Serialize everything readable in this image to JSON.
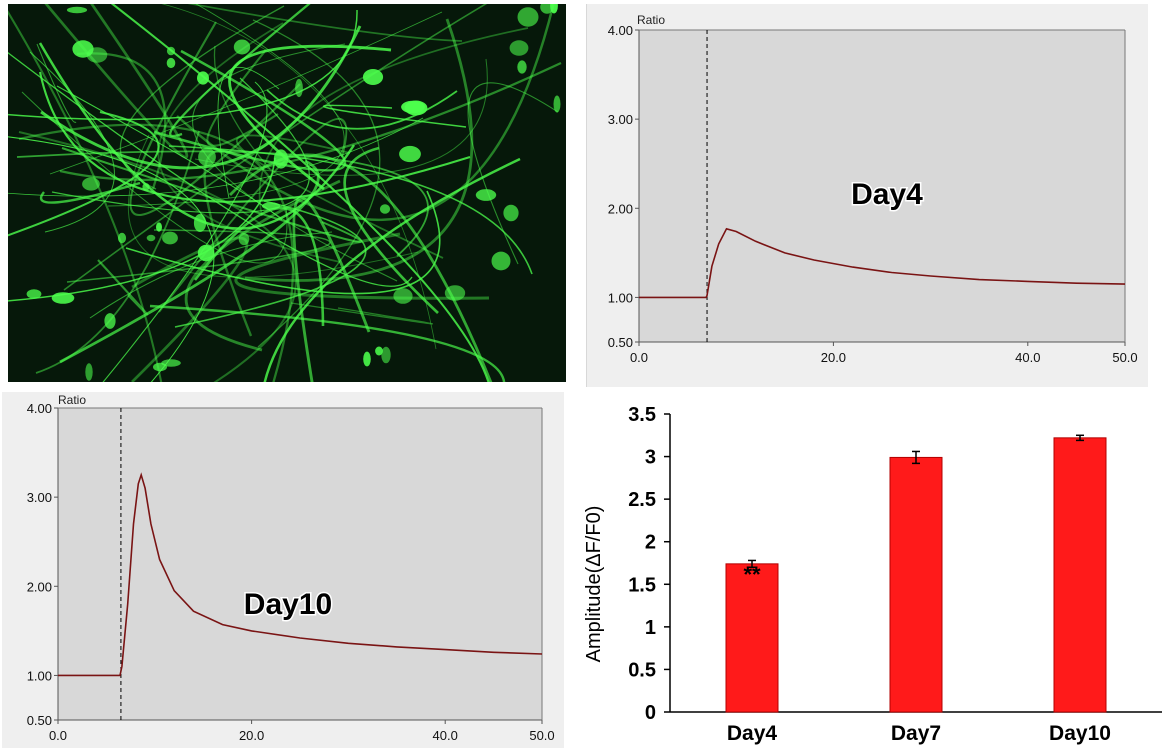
{
  "chart_data": [
    {
      "type": "line",
      "panel": "top-right",
      "ylabel": "Ratio",
      "annotation": "Day4",
      "xlim": [
        0,
        50
      ],
      "ylim": [
        0.5,
        4.0
      ],
      "x_ticks": [
        "0.0",
        "20.0",
        "40.0",
        "50.0"
      ],
      "x_tick_values": [
        0,
        20,
        40,
        50
      ],
      "y_ticks": [
        "0.50",
        "1.00",
        "2.00",
        "3.00",
        "4.00"
      ],
      "y_tick_values": [
        0.5,
        1.0,
        2.0,
        3.0,
        4.0
      ],
      "stimulus_x": 7,
      "series": [
        {
          "color": "#7a1414",
          "points": [
            [
              0,
              1.0
            ],
            [
              6.9,
              1.0
            ],
            [
              7.0,
              1.02
            ],
            [
              7.5,
              1.35
            ],
            [
              8.2,
              1.6
            ],
            [
              9.0,
              1.77
            ],
            [
              10,
              1.74
            ],
            [
              12,
              1.63
            ],
            [
              15,
              1.5
            ],
            [
              18,
              1.42
            ],
            [
              22,
              1.34
            ],
            [
              26,
              1.28
            ],
            [
              30,
              1.24
            ],
            [
              35,
              1.2
            ],
            [
              40,
              1.18
            ],
            [
              45,
              1.16
            ],
            [
              50,
              1.15
            ]
          ]
        }
      ],
      "grid": false,
      "legend": "none"
    },
    {
      "type": "line",
      "panel": "bottom-left",
      "ylabel": "Ratio",
      "annotation": "Day10",
      "xlim": [
        0,
        50
      ],
      "ylim": [
        0.5,
        4.0
      ],
      "x_ticks": [
        "0.0",
        "20.0",
        "40.0",
        "50.0"
      ],
      "x_tick_values": [
        0,
        20,
        40,
        50
      ],
      "y_ticks": [
        "0.50",
        "1.00",
        "2.00",
        "3.00",
        "4.00"
      ],
      "y_tick_values": [
        0.5,
        1.0,
        2.0,
        3.0,
        4.0
      ],
      "stimulus_x": 6.5,
      "series": [
        {
          "color": "#7a1414",
          "points": [
            [
              0,
              1.0
            ],
            [
              6.4,
              1.0
            ],
            [
              6.6,
              1.1
            ],
            [
              7.2,
              1.8
            ],
            [
              7.8,
              2.7
            ],
            [
              8.3,
              3.15
            ],
            [
              8.6,
              3.25
            ],
            [
              9.0,
              3.1
            ],
            [
              9.6,
              2.7
            ],
            [
              10.5,
              2.3
            ],
            [
              12,
              1.95
            ],
            [
              14,
              1.72
            ],
            [
              17,
              1.57
            ],
            [
              20,
              1.5
            ],
            [
              25,
              1.42
            ],
            [
              30,
              1.36
            ],
            [
              35,
              1.32
            ],
            [
              40,
              1.29
            ],
            [
              45,
              1.26
            ],
            [
              50,
              1.24
            ]
          ]
        }
      ],
      "grid": false,
      "legend": "none"
    },
    {
      "type": "bar",
      "panel": "bottom-right",
      "categories": [
        "Day4",
        "Day7",
        "Day10"
      ],
      "values": [
        1.74,
        2.99,
        3.22
      ],
      "errors": [
        0.04,
        0.07,
        0.03
      ],
      "significance": [
        "**",
        "",
        ""
      ],
      "ylabel": "Amplitude(ΔF/F0)",
      "ylim": [
        0,
        3.5
      ],
      "y_ticks": [
        "0",
        "0.5",
        "1",
        "1.5",
        "2",
        "2.5",
        "3",
        "3.5"
      ],
      "y_tick_values": [
        0,
        0.5,
        1,
        1.5,
        2,
        2.5,
        3,
        3.5
      ],
      "bar_color": "#ff1a1a",
      "grid": false,
      "legend": "none"
    }
  ],
  "micrograph": {
    "background": "#06180a",
    "stain_color": "#4cff4c"
  }
}
